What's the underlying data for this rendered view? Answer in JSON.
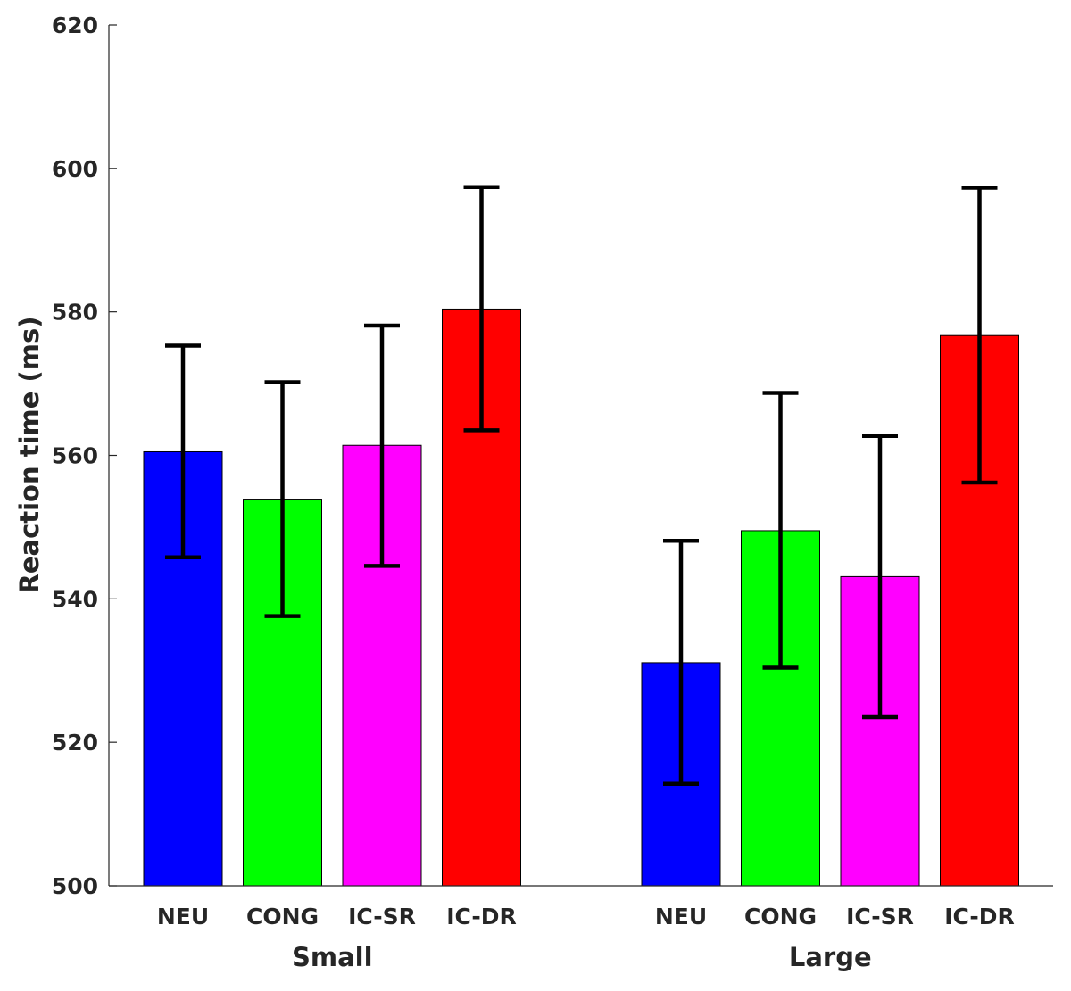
{
  "chart_data": {
    "type": "bar",
    "title": "",
    "ylabel": "Reaction time (ms)",
    "xlabel": "",
    "ylim": [
      500,
      620
    ],
    "yticks": [
      500,
      520,
      540,
      560,
      580,
      600,
      620
    ],
    "groups": [
      {
        "name": "Small",
        "bars": [
          {
            "label": "NEU",
            "value": 560.5,
            "err_low": 545.8,
            "err_high": 575.3,
            "color": "#0000ff"
          },
          {
            "label": "CONG",
            "value": 553.9,
            "err_low": 537.6,
            "err_high": 570.2,
            "color": "#00ff00"
          },
          {
            "label": "IC-SR",
            "value": 561.4,
            "err_low": 544.6,
            "err_high": 578.1,
            "color": "#ff00ff"
          },
          {
            "label": "IC-DR",
            "value": 580.4,
            "err_low": 563.5,
            "err_high": 597.4,
            "color": "#ff0000"
          }
        ]
      },
      {
        "name": "Large",
        "bars": [
          {
            "label": "NEU",
            "value": 531.1,
            "err_low": 514.2,
            "err_high": 548.1,
            "color": "#0000ff"
          },
          {
            "label": "CONG",
            "value": 549.5,
            "err_low": 530.4,
            "err_high": 568.7,
            "color": "#00ff00"
          },
          {
            "label": "IC-SR",
            "value": 543.1,
            "err_low": 523.5,
            "err_high": 562.7,
            "color": "#ff00ff"
          },
          {
            "label": "IC-DR",
            "value": 576.7,
            "err_low": 556.2,
            "err_high": 597.3,
            "color": "#ff0000"
          }
        ]
      }
    ],
    "grid": false,
    "legend": "none"
  }
}
